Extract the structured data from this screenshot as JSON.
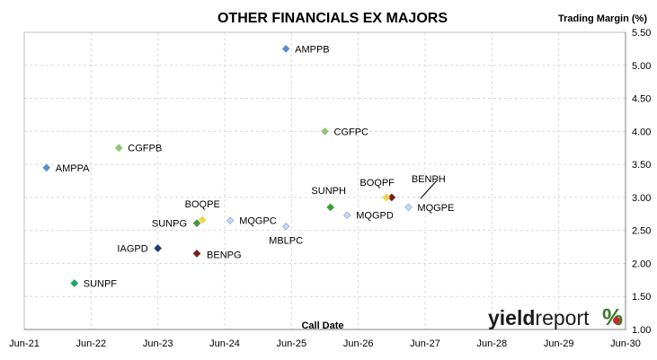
{
  "chart_data": {
    "type": "scatter",
    "title": "OTHER FINANCIALS EX MAJORS",
    "xlabel": "Call Date",
    "ylabel": "Trading Margin (%)",
    "x_ticks": [
      "Jun-21",
      "Jun-22",
      "Jun-23",
      "Jun-24",
      "Jun-25",
      "Jun-26",
      "Jun-27",
      "Jun-28",
      "Jun-29",
      "Jun-30"
    ],
    "xlim": [
      "2021-06",
      "2030-06"
    ],
    "ylim": [
      1.0,
      5.5
    ],
    "y_ticks": [
      "1.00",
      "1.50",
      "2.00",
      "2.50",
      "3.00",
      "3.50",
      "4.00",
      "4.50",
      "5.00",
      "5.50"
    ],
    "grid": true,
    "legend": "none",
    "points": [
      {
        "label": "AMPPB",
        "x": "2025-05",
        "y": 5.25,
        "color": "#5b8fd0"
      },
      {
        "label": "CGFPC",
        "x": "2025-12",
        "y": 4.0,
        "color": "#92c47a"
      },
      {
        "label": "CGFPB",
        "x": "2022-11",
        "y": 3.75,
        "color": "#92c47a"
      },
      {
        "label": "AMPPA",
        "x": "2021-10",
        "y": 3.45,
        "color": "#5b8fd0"
      },
      {
        "label": "BENPH",
        "x": "2026-12",
        "y": 3.0,
        "color": "#7b1c1c"
      },
      {
        "label": "BOQPF",
        "x": "2026-11",
        "y": 3.0,
        "color": "#f2d34b"
      },
      {
        "label": "SUNPH",
        "x": "2026-01",
        "y": 2.85,
        "color": "#3f9b35"
      },
      {
        "label": "MQGPE",
        "x": "2027-03",
        "y": 2.85,
        "color": "#c7d9ef"
      },
      {
        "label": "MQGPD",
        "x": "2026-04",
        "y": 2.73,
        "color": "#c7d9ef"
      },
      {
        "label": "BOQPE",
        "x": "2024-02",
        "y": 2.66,
        "color": "#f2d34b"
      },
      {
        "label": "MQGPC",
        "x": "2024-07",
        "y": 2.65,
        "color": "#c7d9ef"
      },
      {
        "label": "SUNPG",
        "x": "2024-01",
        "y": 2.61,
        "color": "#3f9b35"
      },
      {
        "label": "MBLPC",
        "x": "2025-05",
        "y": 2.56,
        "color": "#c7d9ef"
      },
      {
        "label": "IAGPD",
        "x": "2023-06",
        "y": 2.23,
        "color": "#1f3d6e"
      },
      {
        "label": "BENPG",
        "x": "2024-01",
        "y": 2.15,
        "color": "#7b1c1c"
      },
      {
        "label": "SUNPF",
        "x": "2022-03",
        "y": 1.7,
        "color": "#19a865"
      }
    ]
  },
  "watermark": {
    "part1": "yield",
    "part2": "report",
    "part3": "%",
    "accent_green": "#3a7a28",
    "accent_red": "#c0302b"
  }
}
